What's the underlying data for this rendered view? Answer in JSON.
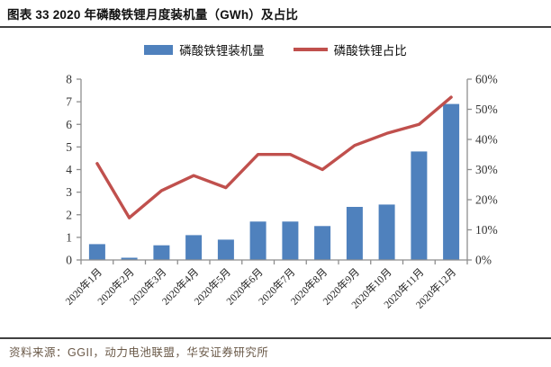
{
  "title": "图表 33 2020 年磷酸铁锂月度装机量（GWh）及占比",
  "source": "资料来源：GGII，动力电池联盟，华安证券研究所",
  "legend": {
    "bars": "磷酸铁锂装机量",
    "line": "磷酸铁锂占比"
  },
  "colors": {
    "bar": "#4F81BD",
    "line": "#C0504D",
    "axis": "#8E8E8E",
    "tick_text": "#333333",
    "x_label_text": "#222222",
    "rule": "#404040",
    "source_text": "#6B5A49"
  },
  "chart_data": {
    "type": "bar",
    "subtype": "bar+line combo, dual axis",
    "title": "图表 33 2020 年磷酸铁锂月度装机量（GWh）及占比",
    "categories": [
      "2020年1月",
      "2020年2月",
      "2020年3月",
      "2020年4月",
      "2020年5月",
      "2020年6月",
      "2020年7月",
      "2020年8月",
      "2020年9月",
      "2020年10月",
      "2020年11月",
      "2020年12月"
    ],
    "series": [
      {
        "name": "磷酸铁锂装机量",
        "type": "bar",
        "axis": "left",
        "unit": "GWh",
        "values": [
          0.7,
          0.1,
          0.65,
          1.1,
          0.9,
          1.7,
          1.7,
          1.5,
          2.35,
          2.45,
          4.8,
          6.9
        ]
      },
      {
        "name": "磷酸铁锂占比",
        "type": "line",
        "axis": "right",
        "unit": "%",
        "values": [
          32,
          14,
          23,
          28,
          24,
          35,
          35,
          30,
          38,
          42,
          45,
          54
        ]
      }
    ],
    "left_axis": {
      "min": 0,
      "max": 8,
      "step": 1,
      "tick_labels": [
        "0",
        "1",
        "2",
        "3",
        "4",
        "5",
        "6",
        "7",
        "8"
      ]
    },
    "right_axis": {
      "min": 0,
      "max": 60,
      "step": 10,
      "tick_labels": [
        "0%",
        "10%",
        "20%",
        "30%",
        "40%",
        "50%",
        "60%"
      ]
    },
    "grid": false,
    "legend_position": "top-center",
    "x_label_rotation_deg": -45
  }
}
